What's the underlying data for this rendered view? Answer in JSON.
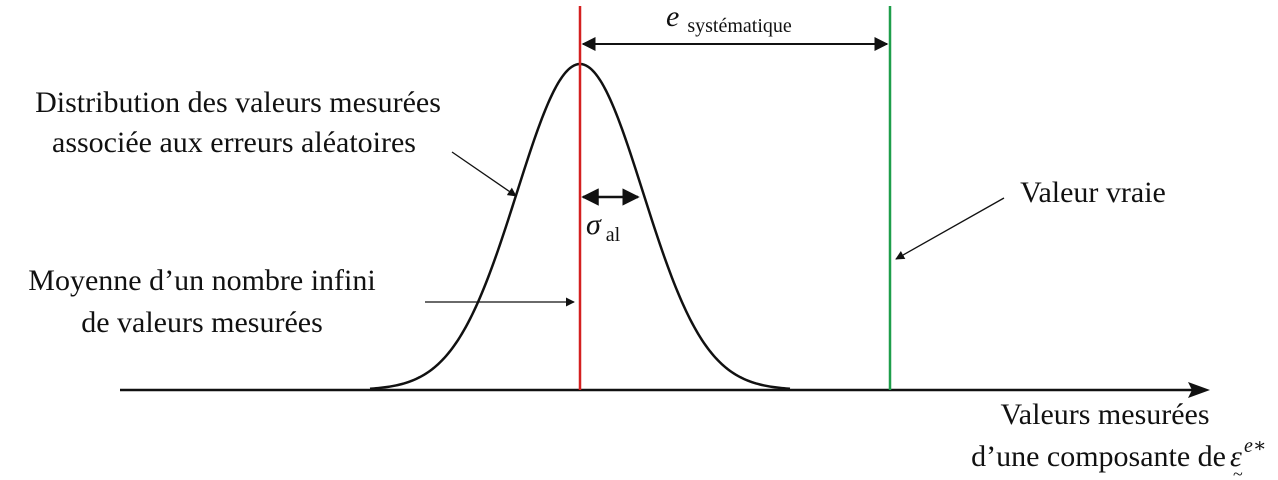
{
  "labels": {
    "distribution_line1": "Distribution des valeurs mesurées",
    "distribution_line2": "associée aux erreurs aléatoires",
    "mean_line1": "Moyenne d’un nombre infini",
    "mean_line2": "de valeurs mesurées",
    "true_value": "Valeur vraie",
    "axis_line1": "Valeurs mesurées",
    "axis_line2": "d’une composante de",
    "axis_symbol": "ε",
    "axis_superscript": "e∗",
    "axis_undertilde": "~",
    "systematic_main": "e",
    "systematic_sub": "systématique",
    "sigma_main": "σ",
    "sigma_sub": "al"
  },
  "colors": {
    "mean_line": "#d42020",
    "true_value_line": "#1e9e4a",
    "curve": "#111111",
    "axis": "#111111"
  }
}
